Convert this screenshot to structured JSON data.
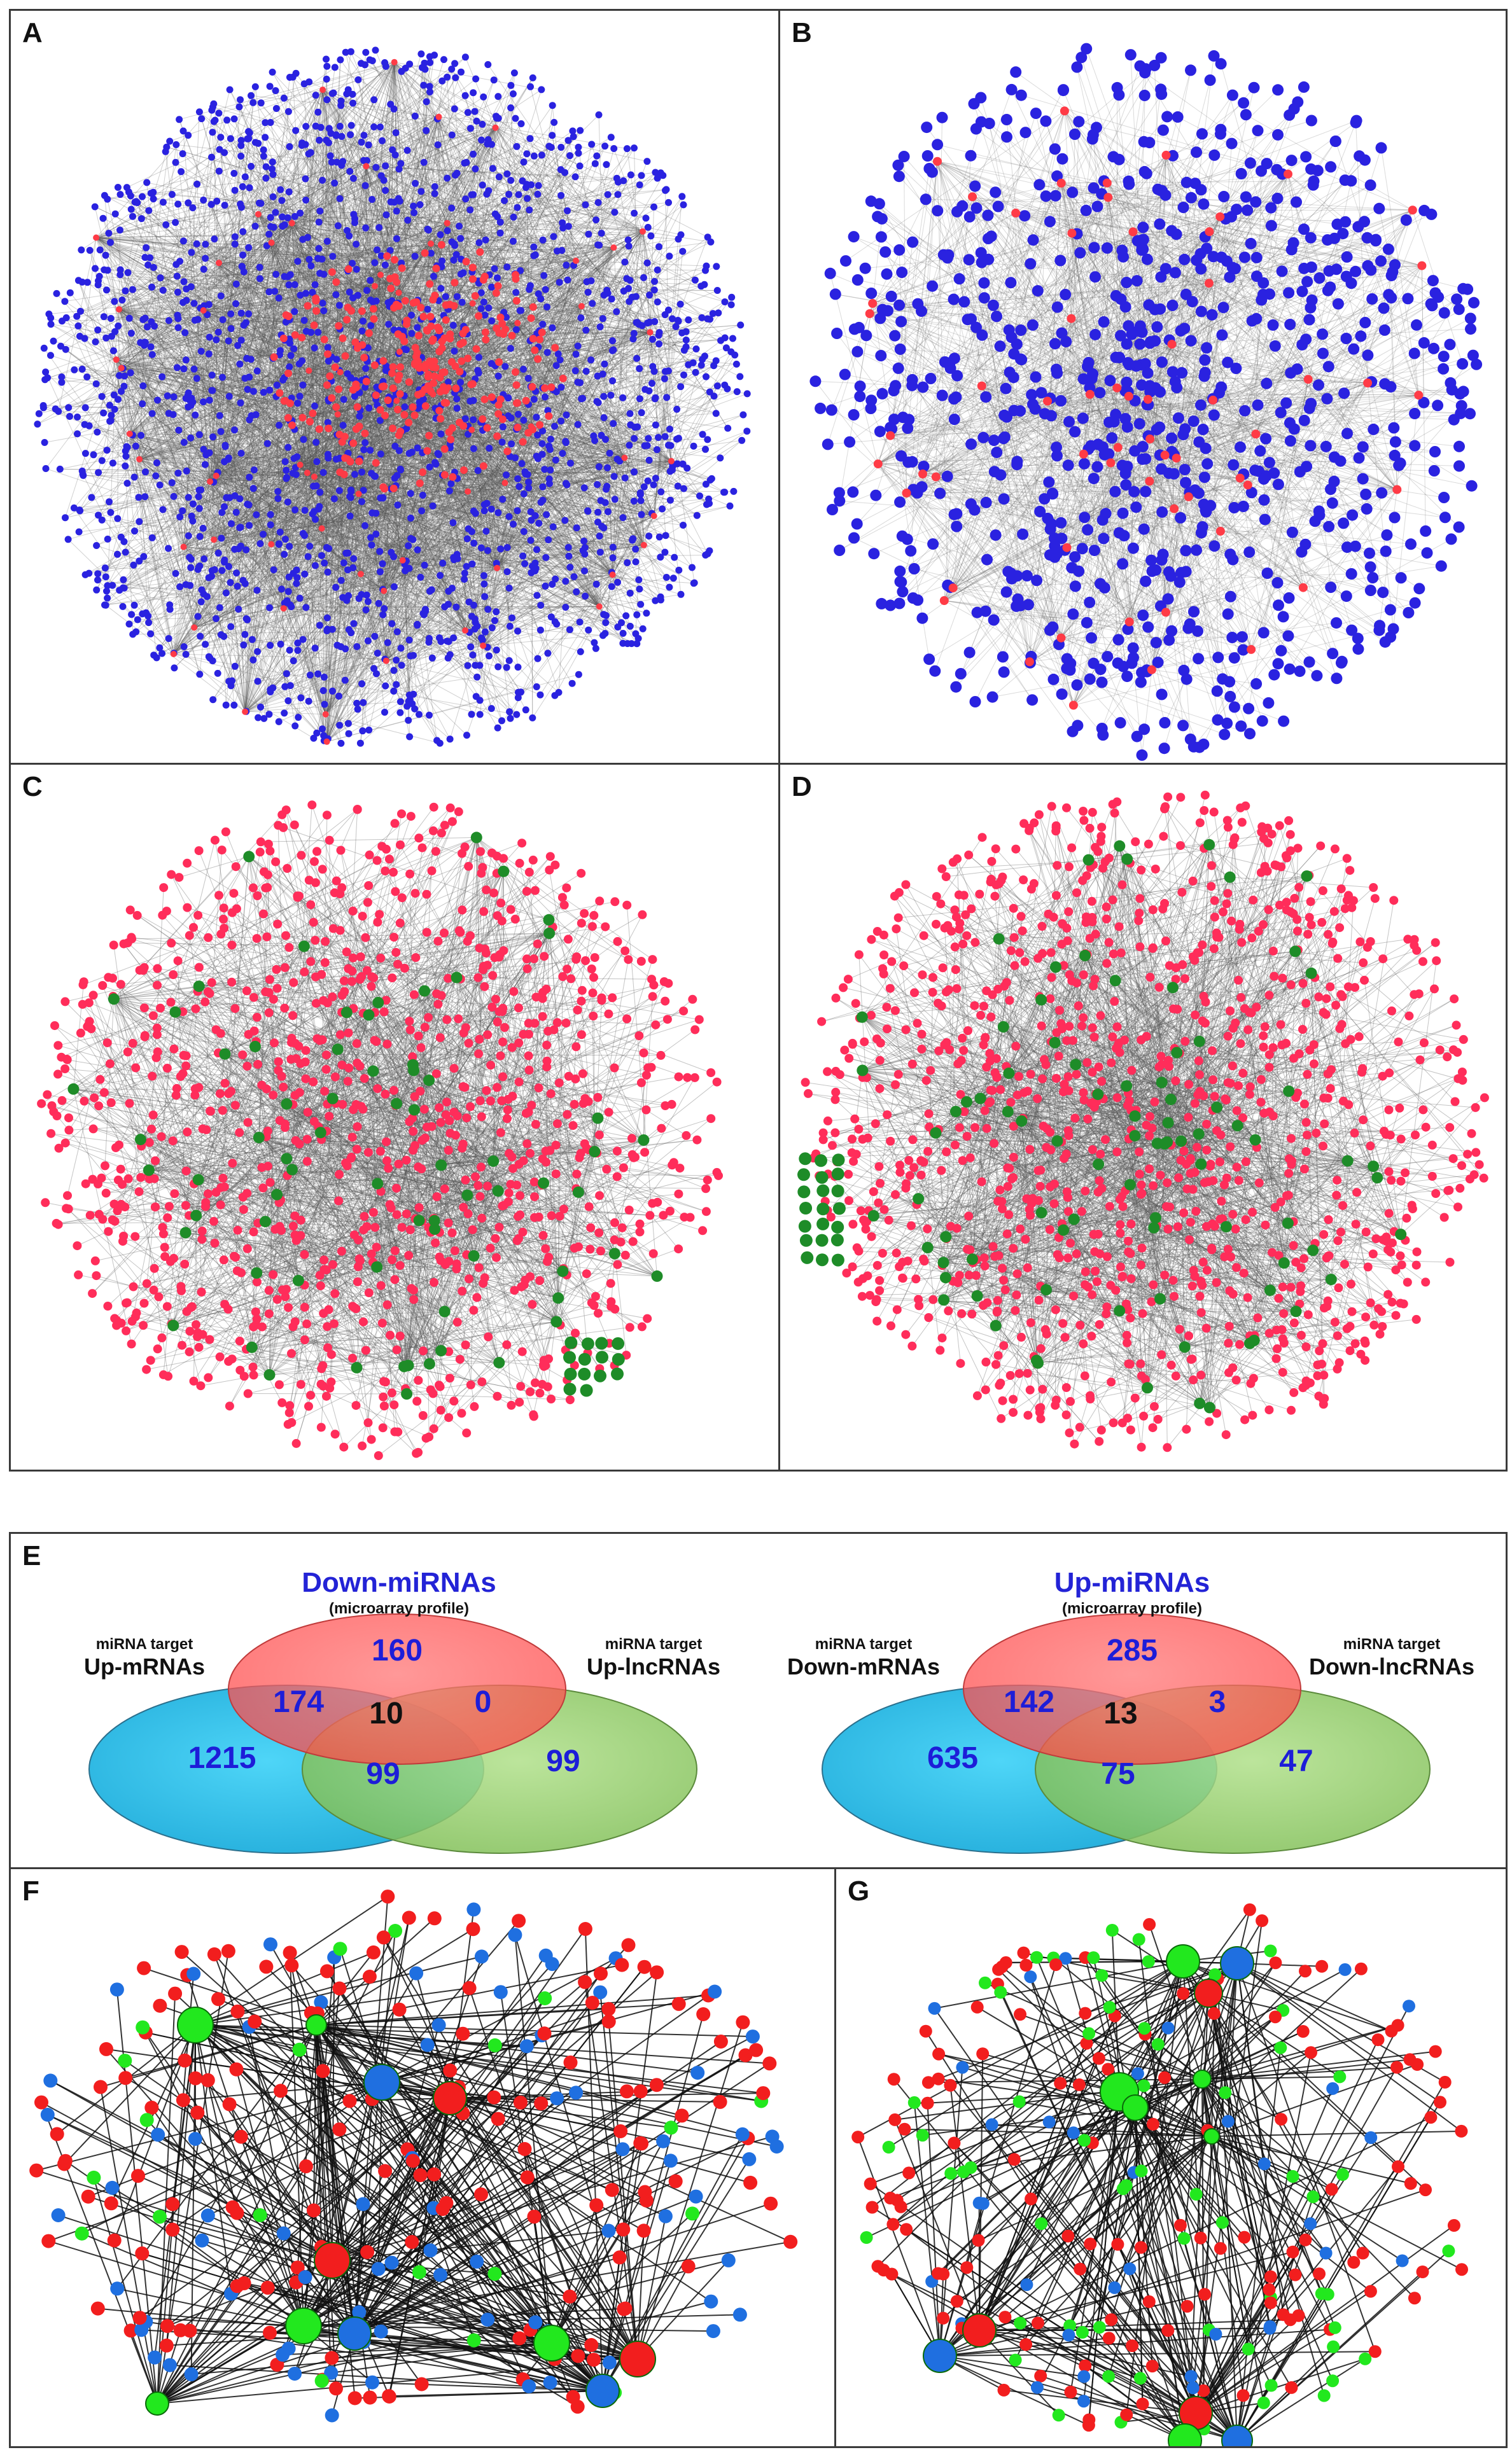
{
  "panels": {
    "a": {
      "label": "A",
      "node_colors": {
        "mirna": "#ff3b46",
        "target": "#2a22e0"
      }
    },
    "b": {
      "label": "B",
      "node_colors": {
        "mirna": "#ff3b46",
        "target": "#2a22e0"
      }
    },
    "c": {
      "label": "C",
      "node_colors": {
        "mirna": "#1e8c28",
        "target": "#ff2d5a"
      }
    },
    "d": {
      "label": "D",
      "node_colors": {
        "mirna": "#1e8c28",
        "target": "#ff2d5a"
      }
    },
    "e": {
      "label": "E"
    },
    "f": {
      "label": "F",
      "node_colors": {
        "red": "#f21e1e",
        "blue": "#1f6fe0",
        "green": "#22e81e"
      }
    },
    "g": {
      "label": "G",
      "node_colors": {
        "red": "#f21e1e",
        "blue": "#1f6fe0",
        "green": "#22e81e"
      }
    }
  },
  "venn_left": {
    "title": "Down-miRNAs",
    "subtitle": "(microarray profile)",
    "left_set_small": "miRNA target",
    "left_set_big": "Up-mRNAs",
    "right_set_small": "miRNA target",
    "right_set_big": "Up-lncRNAs",
    "top_only": "160",
    "top_left": "174",
    "top_right": "0",
    "center": "10",
    "left_only": "1215",
    "bottom": "99",
    "right_only": "99"
  },
  "venn_right": {
    "title": "Up-miRNAs",
    "subtitle": "(microarray profile)",
    "left_set_small": "miRNA target",
    "left_set_big": "Down-mRNAs",
    "right_set_small": "miRNA target",
    "right_set_big": "Down-lncRNAs",
    "top_only": "285",
    "top_left": "142",
    "top_right": "3",
    "center": "13",
    "left_only": "635",
    "bottom": "75",
    "right_only": "47"
  },
  "colors": {
    "edge": "#555555",
    "venn_top": "#ff5a5a",
    "venn_left": "#19b4e6",
    "venn_right": "#8cc864"
  }
}
